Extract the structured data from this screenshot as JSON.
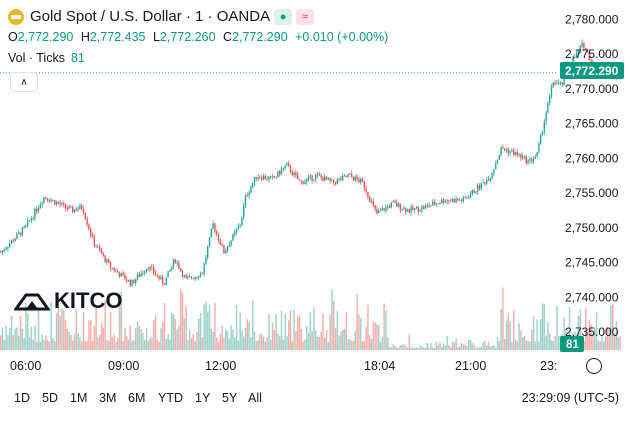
{
  "header": {
    "title": "Gold Spot / U.S. Dollar · 1 · OANDA",
    "market_open_marker": "●",
    "wave_marker": "≈"
  },
  "ohlc": {
    "o_label": "O",
    "o_value": "2,772.290",
    "h_label": "H",
    "h_value": "2,772.435",
    "l_label": "L",
    "l_value": "2,772.260",
    "c_label": "C",
    "c_value": "2,772.290",
    "change": "+0.010 (+0.00%)"
  },
  "volume": {
    "label": "Vol · Ticks",
    "value": "81"
  },
  "watermark": {
    "logo_text": "KITCO"
  },
  "price_axis": {
    "ticks": [
      "2,780.000",
      "2,775.000",
      "2,770.000",
      "2,765.000",
      "2,760.000",
      "2,755.000",
      "2,750.000",
      "2,745.000",
      "2,740.000",
      "2,735.000"
    ],
    "current_price_label": "2,772.290",
    "volume_label": "81"
  },
  "time_axis": {
    "ticks": [
      "06:00",
      "09:00",
      "12:00",
      "18:04",
      "21:00",
      "23:"
    ]
  },
  "range_buttons": [
    "1D",
    "5D",
    "1M",
    "3M",
    "6M",
    "YTD",
    "1Y",
    "5Y",
    "All"
  ],
  "clock": "23:29:09 (UTC-5)",
  "colors": {
    "up": "#26a69a",
    "down": "#ef5350",
    "price_line": "#089981",
    "up_vol": "#9fd3cc",
    "down_vol": "#f3b0ad"
  },
  "chart_data": {
    "type": "candlestick",
    "title": "Gold Spot / U.S. Dollar",
    "interval": "1 minute",
    "ylim": [
      2733,
      2781
    ],
    "x_ticks": [
      "06:00",
      "09:00",
      "12:00",
      "18:04",
      "21:00"
    ],
    "last_price": 2772.29,
    "path_anchors_time_price": [
      [
        "04:30",
        2746.5
      ],
      [
        "05:15",
        2750.0
      ],
      [
        "05:50",
        2754.5
      ],
      [
        "06:40",
        2752.5
      ],
      [
        "07:00",
        2753.0
      ],
      [
        "07:20",
        2748.0
      ],
      [
        "07:50",
        2744.5
      ],
      [
        "08:30",
        2742.0
      ],
      [
        "09:00",
        2744.5
      ],
      [
        "09:30",
        2742.0
      ],
      [
        "09:50",
        2745.5
      ],
      [
        "10:10",
        2742.5
      ],
      [
        "10:40",
        2743.5
      ],
      [
        "11:00",
        2750.5
      ],
      [
        "11:20",
        2746.5
      ],
      [
        "11:50",
        2750.5
      ],
      [
        "12:00",
        2754.5
      ],
      [
        "12:20",
        2757.5
      ],
      [
        "12:50",
        2757.0
      ],
      [
        "13:15",
        2759.0
      ],
      [
        "13:40",
        2756.5
      ],
      [
        "14:10",
        2757.5
      ],
      [
        "14:40",
        2756.5
      ],
      [
        "15:10",
        2757.5
      ],
      [
        "15:35",
        2756.5
      ],
      [
        "16:00",
        2752.0
      ],
      [
        "16:30",
        2753.5
      ],
      [
        "17:00",
        2752.5
      ],
      [
        "17:30",
        2753.0
      ],
      [
        "18:04",
        2754.0
      ],
      [
        "18:40",
        2754.0
      ],
      [
        "19:10",
        2756.0
      ],
      [
        "19:30",
        2757.5
      ],
      [
        "19:50",
        2761.5
      ],
      [
        "20:20",
        2760.5
      ],
      [
        "20:40",
        2759.5
      ],
      [
        "20:55",
        2760.5
      ],
      [
        "21:10",
        2766.0
      ],
      [
        "21:25",
        2771.0
      ],
      [
        "21:40",
        2770.5
      ],
      [
        "22:00",
        2774.0
      ],
      [
        "22:20",
        2776.5
      ],
      [
        "22:40",
        2773.0
      ],
      [
        "23:00",
        2773.5
      ],
      [
        "23:15",
        2772.0
      ],
      [
        "23:29",
        2772.29
      ]
    ],
    "volume_ticks_last": 81
  }
}
